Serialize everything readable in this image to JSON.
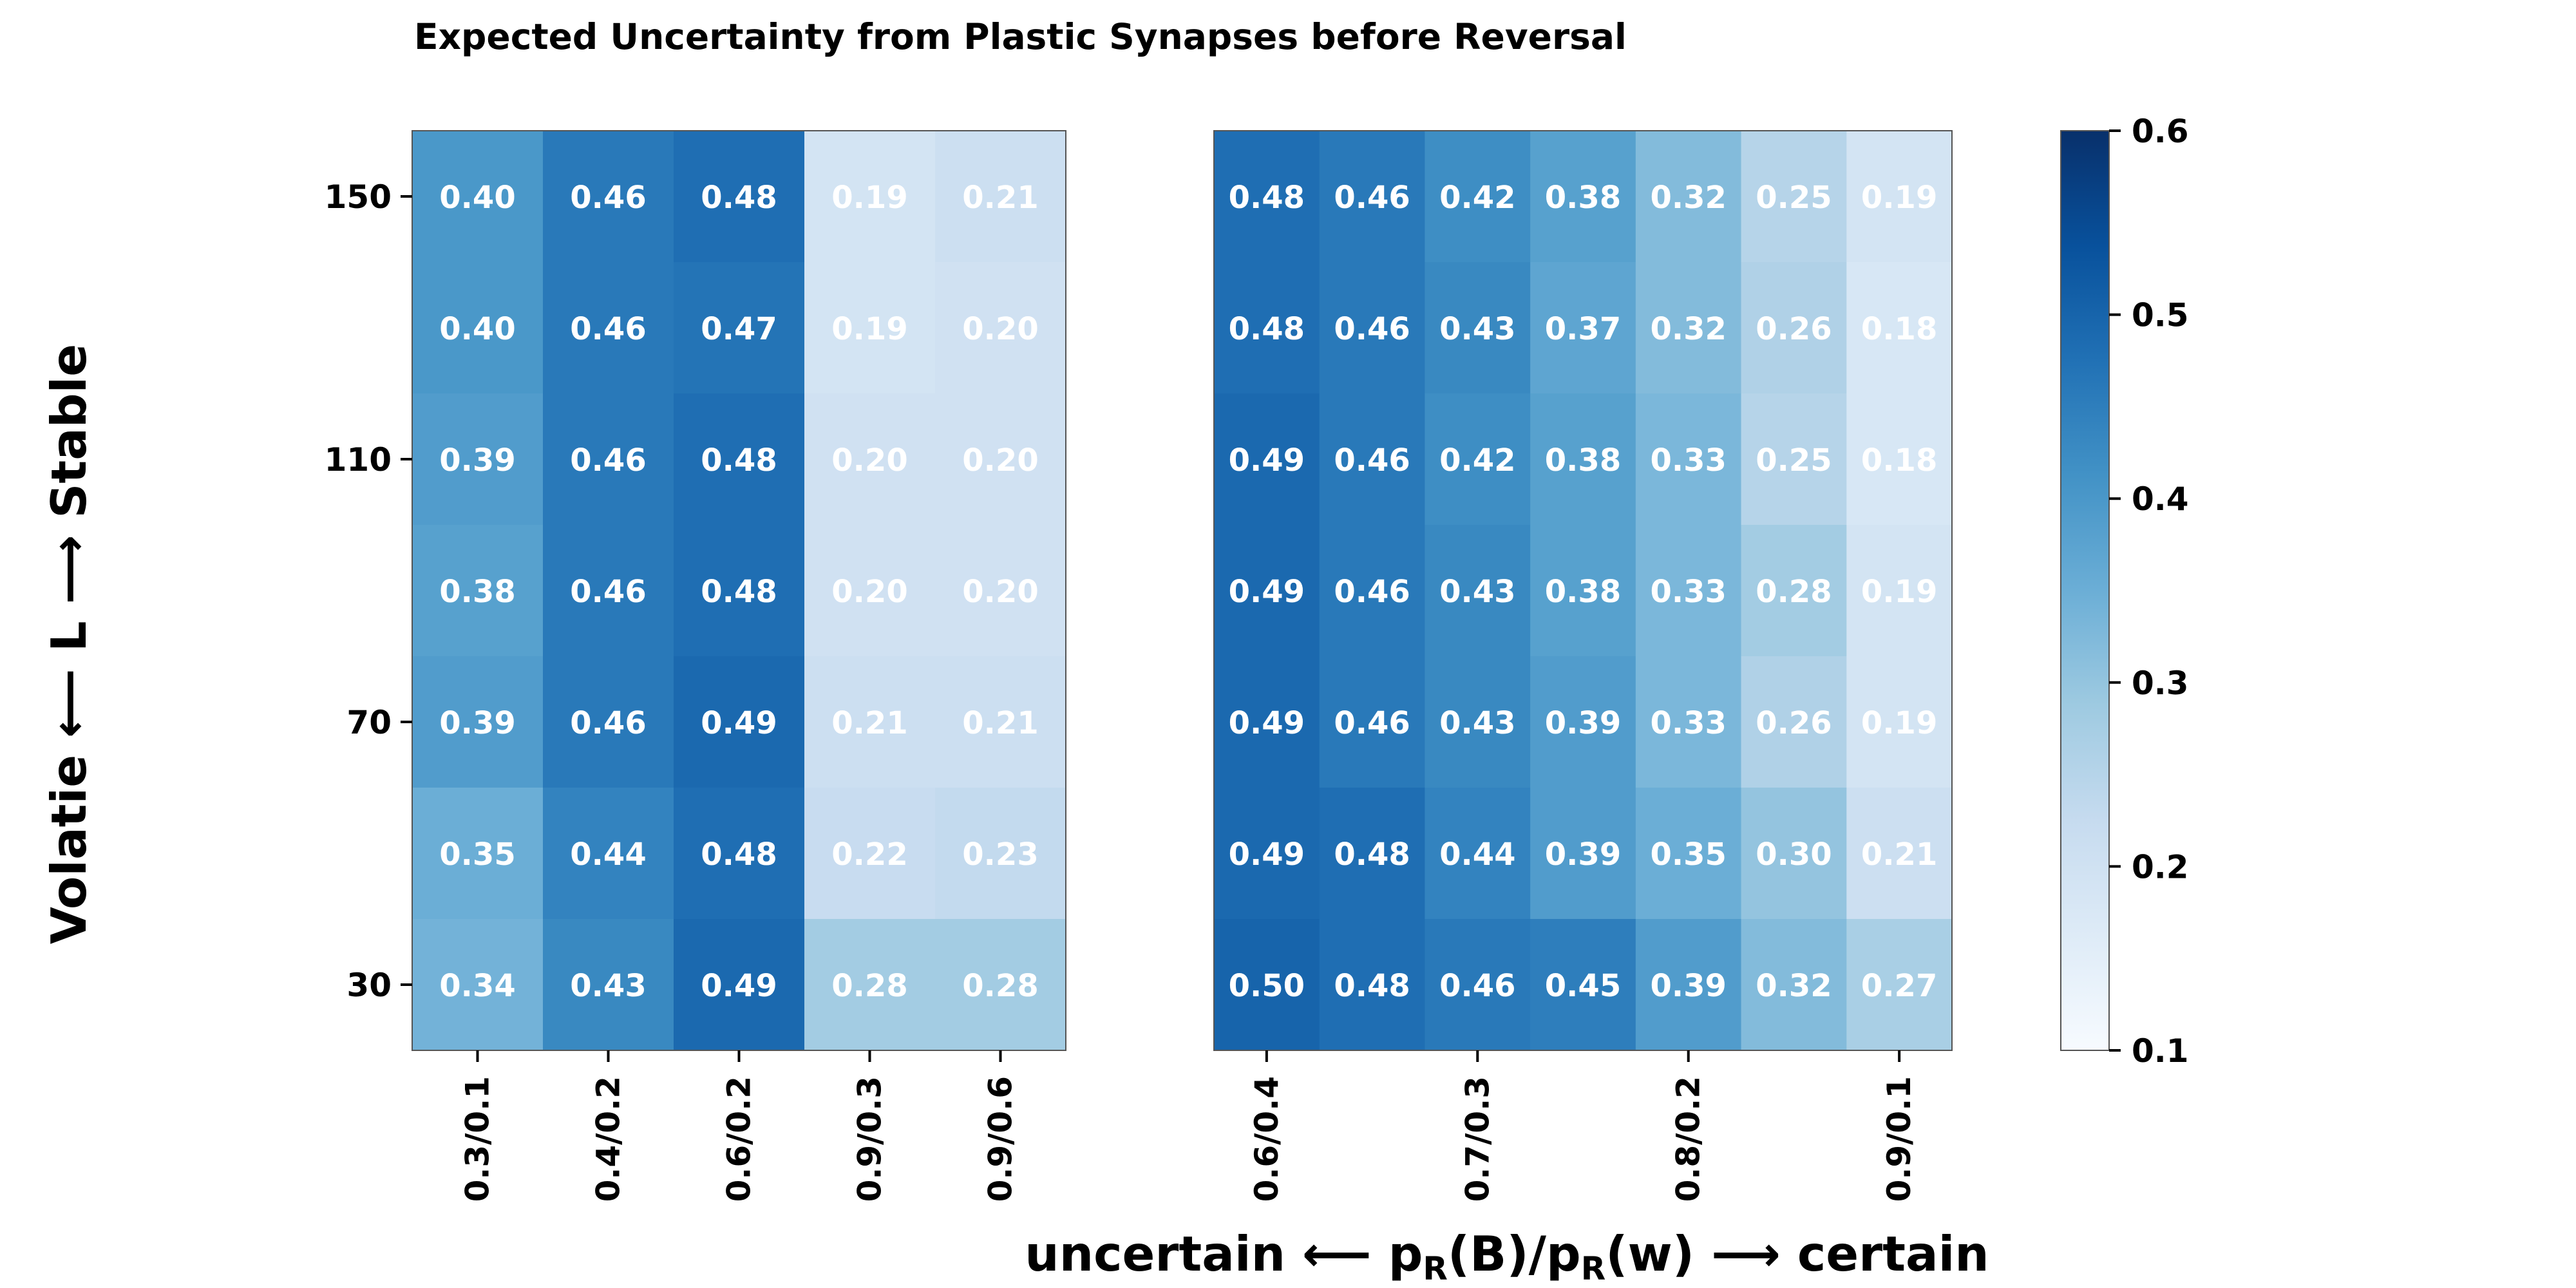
{
  "chart_data": {
    "type": "heatmap",
    "title": "Expected Uncertainty from Plastic Synapses before Reversal",
    "ylabel": "Volatie ⟵ L ⟶ Stable",
    "xlabel": {
      "left": "uncertain ⟵ p",
      "sub1": "R",
      "mid": "(B)/p",
      "sub2": "R",
      "right": "(w) ⟶ certain"
    },
    "y_tick_labels": [
      "150",
      "110",
      "70",
      "30"
    ],
    "y_rows_top_to_bottom": [
      150,
      130,
      110,
      90,
      70,
      50,
      30
    ],
    "colorbar": {
      "colormap": "Blues",
      "vmin": 0.1,
      "vmax": 0.6,
      "ticks": [
        "0.1",
        "0.2",
        "0.3",
        "0.4",
        "0.5",
        "0.6"
      ]
    },
    "panels": [
      {
        "name": "left",
        "x_tick_labels": [
          "0.3/0.1",
          "0.4/0.2",
          "0.6/0.2",
          "0.9/0.3",
          "0.9/0.6"
        ],
        "x_tick_columns": [
          0,
          1,
          2,
          3,
          4
        ],
        "values": [
          [
            0.4,
            0.46,
            0.48,
            0.19,
            0.21
          ],
          [
            0.4,
            0.46,
            0.47,
            0.19,
            0.2
          ],
          [
            0.39,
            0.46,
            0.48,
            0.2,
            0.2
          ],
          [
            0.38,
            0.46,
            0.48,
            0.2,
            0.2
          ],
          [
            0.39,
            0.46,
            0.49,
            0.21,
            0.21
          ],
          [
            0.35,
            0.44,
            0.48,
            0.22,
            0.23
          ],
          [
            0.34,
            0.43,
            0.49,
            0.28,
            0.28
          ]
        ]
      },
      {
        "name": "right",
        "x_tick_labels": [
          "0.6/0.4",
          "0.7/0.3",
          "0.8/0.2",
          "0.9/0.1"
        ],
        "x_tick_columns": [
          0,
          2,
          4,
          6
        ],
        "values": [
          [
            0.48,
            0.46,
            0.42,
            0.38,
            0.32,
            0.25,
            0.19
          ],
          [
            0.48,
            0.46,
            0.43,
            0.37,
            0.32,
            0.26,
            0.18
          ],
          [
            0.49,
            0.46,
            0.42,
            0.38,
            0.33,
            0.25,
            0.18
          ],
          [
            0.49,
            0.46,
            0.43,
            0.38,
            0.33,
            0.28,
            0.19
          ],
          [
            0.49,
            0.46,
            0.43,
            0.39,
            0.33,
            0.26,
            0.19
          ],
          [
            0.49,
            0.48,
            0.44,
            0.39,
            0.35,
            0.3,
            0.21
          ],
          [
            0.5,
            0.48,
            0.46,
            0.45,
            0.39,
            0.32,
            0.27
          ]
        ]
      }
    ]
  }
}
